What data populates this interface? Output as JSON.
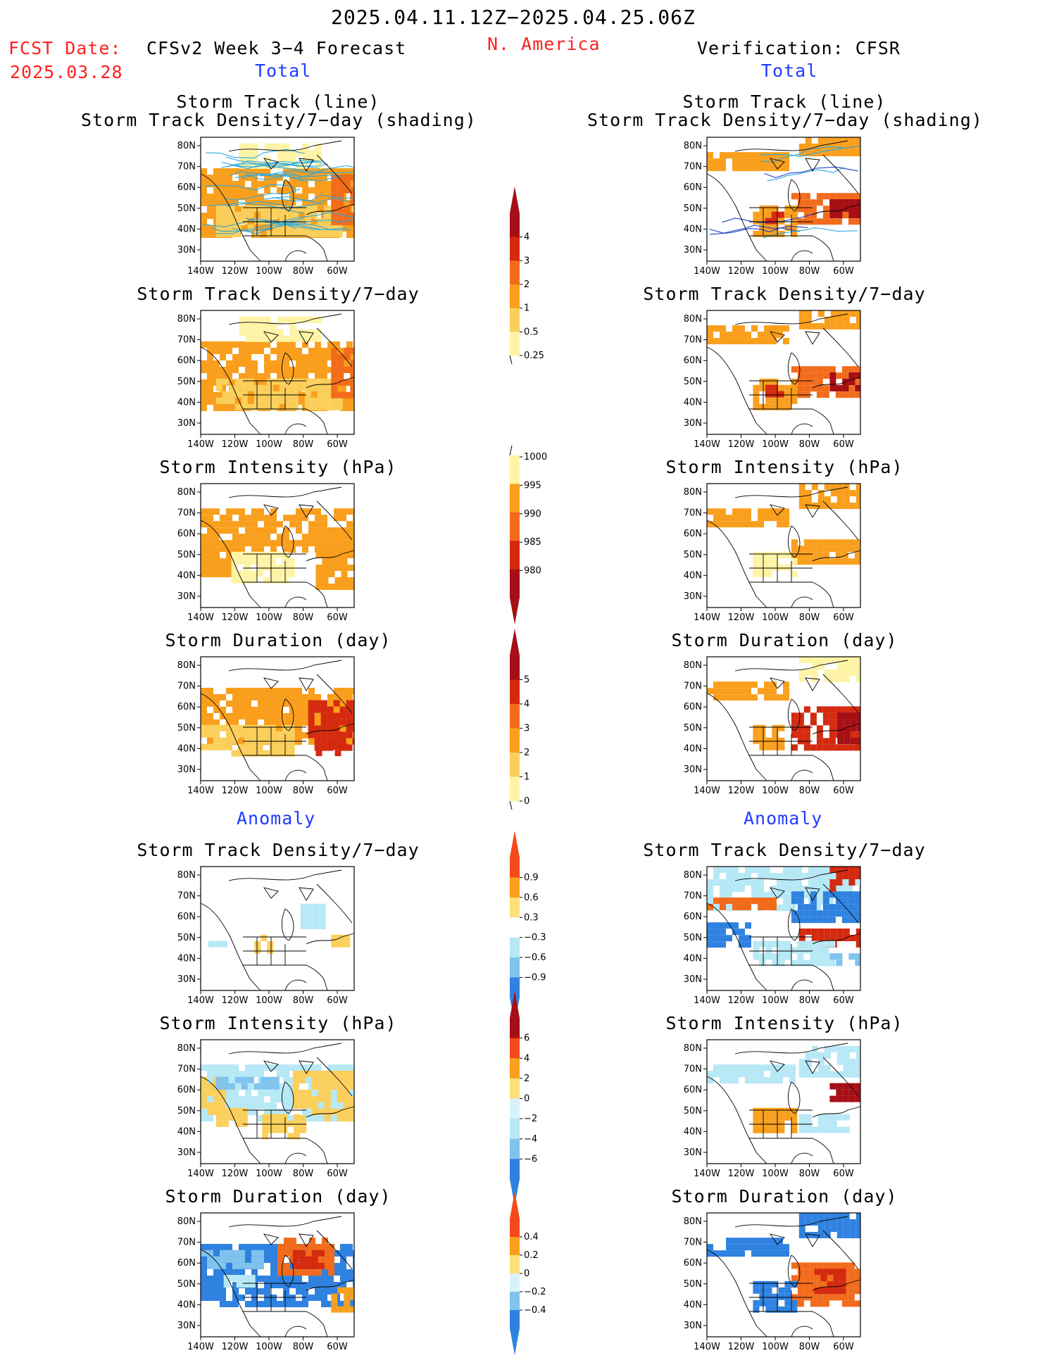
{
  "header": {
    "date_range": "2025.04.11.12Z−2025.04.25.06Z",
    "fcst_label": "FCST Date:",
    "fcst_date": "2025.03.28",
    "model_title": "CFSv2 Week 3−4 Forecast",
    "region": "N. America",
    "verification": "Verification: CFSR"
  },
  "sections": {
    "total": "Total",
    "anomaly": "Anomaly"
  },
  "titles": {
    "track_line": "Storm Track (line)",
    "track_shading": "Storm Track Density/7−day (shading)",
    "density": "Storm Track Density/7−day",
    "intensity": "Storm Intensity (hPa)",
    "duration": "Storm Duration (day)"
  },
  "axes": {
    "lat_labels": [
      "80N",
      "70N",
      "60N",
      "50N",
      "40N",
      "30N"
    ],
    "lon_labels": [
      "140W",
      "120W",
      "100W",
      "80W",
      "60W"
    ]
  },
  "colorbars": [
    {
      "id": "density-total",
      "labels": [
        "4",
        "3",
        "2",
        "1",
        "0.5",
        "0.25"
      ],
      "colors": [
        "#a50f15",
        "#d42a10",
        "#f26b1b",
        "#f99f1d",
        "#fbcf5b",
        "#fff3a6"
      ],
      "arrow_top": true,
      "arrow_bottom": false
    },
    {
      "id": "intensity-total",
      "labels": [
        "1000",
        "995",
        "990",
        "985",
        "980"
      ],
      "colors": [
        "#fff3a6",
        "#f99f1d",
        "#f26b1b",
        "#d42a10",
        "#a50f15"
      ],
      "arrow_top": false,
      "arrow_bottom": true
    },
    {
      "id": "duration-total",
      "labels": [
        "5",
        "4",
        "3",
        "2",
        "1",
        "0"
      ],
      "colors": [
        "#a50f15",
        "#d42a10",
        "#f26b1b",
        "#f99f1d",
        "#fbcf5b",
        "#fff3a6"
      ],
      "arrow_top": true,
      "arrow_bottom": false
    },
    {
      "id": "density-anom",
      "labels": [
        "0.9",
        "0.6",
        "0.3",
        "−0.3",
        "−0.6",
        "−0.9"
      ],
      "colors": [
        "#f44a1a",
        "#f99f1d",
        "#fde07a",
        "#ffffff",
        "#b7e8f5",
        "#7fc3ee",
        "#2f82e0"
      ],
      "arrow_top": true,
      "arrow_bottom": true
    },
    {
      "id": "intensity-anom",
      "labels": [
        "6",
        "4",
        "2",
        "0",
        "−2",
        "−4",
        "−6"
      ],
      "colors": [
        "#a50f15",
        "#f44a1a",
        "#f99f1d",
        "#fde07a",
        "#d8f3fb",
        "#b7e8f5",
        "#7fc3ee",
        "#2f82e0"
      ],
      "arrow_top": true,
      "arrow_bottom": true
    },
    {
      "id": "duration-anom",
      "labels": [
        "0.4",
        "0.2",
        "0",
        "−0.2",
        "−0.4"
      ],
      "colors": [
        "#f44a1a",
        "#f99f1d",
        "#fde07a",
        "#d8f3fb",
        "#7fc3ee",
        "#2f82e0"
      ],
      "arrow_top": true,
      "arrow_bottom": true
    }
  ],
  "colors": {
    "lightyellow": "#fff3a6",
    "yellow": "#fbcf5b",
    "orange": "#f99f1d",
    "darkorange": "#f26b1b",
    "red": "#d42a10",
    "darkred": "#a50f15",
    "lightblue": "#b7e8f5",
    "midblue": "#7fc3ee",
    "blue": "#2f82e0",
    "darkblue": "#1f5fd0",
    "track_line": "#2aa8e0"
  }
}
